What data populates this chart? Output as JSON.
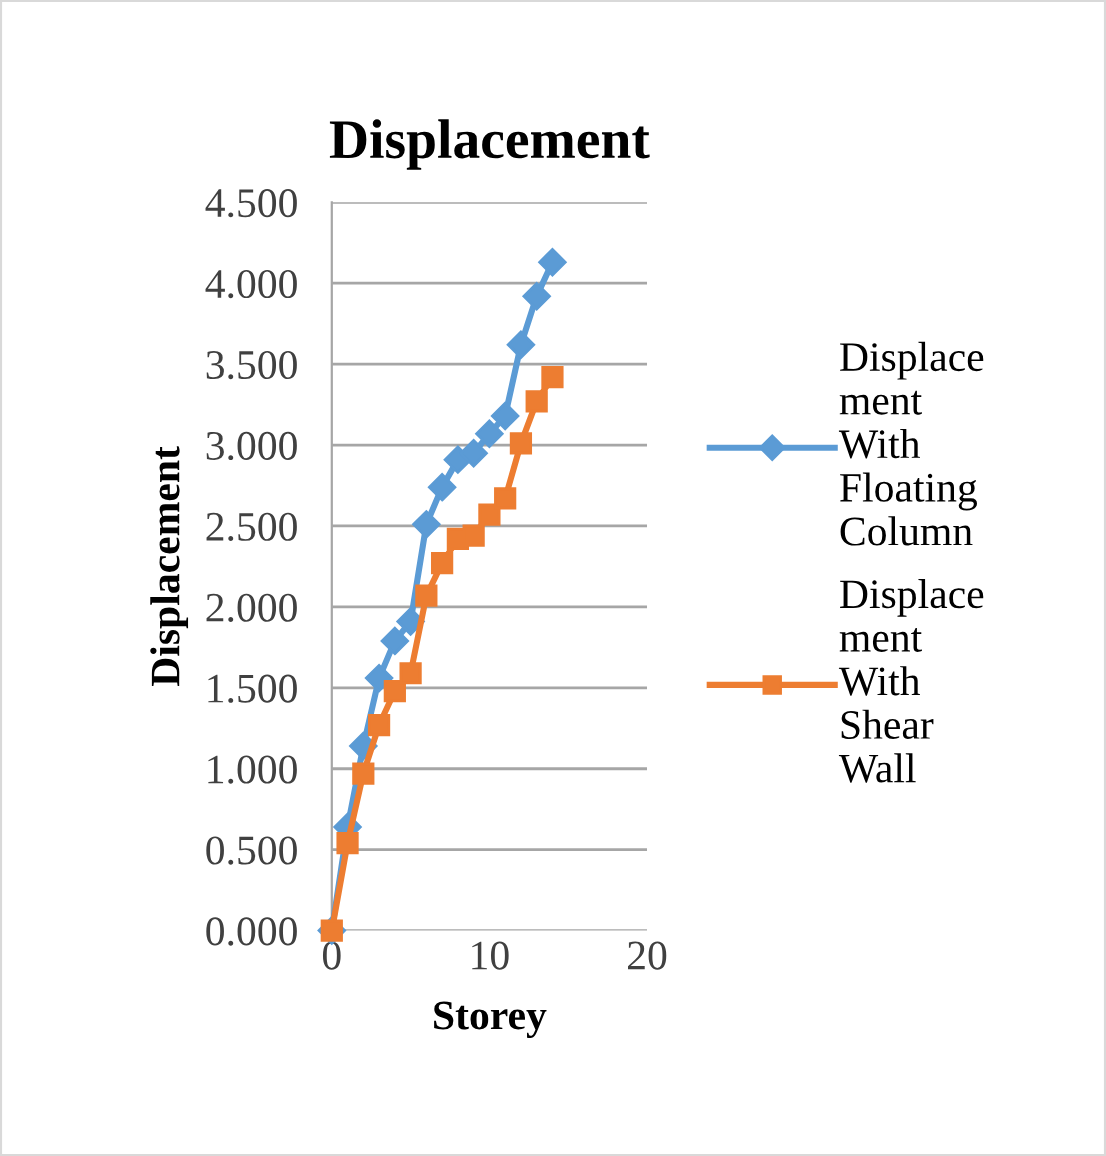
{
  "chart_data": {
    "type": "line",
    "title": "Displacement",
    "xlabel": "Storey",
    "ylabel": "Displacement",
    "x": [
      0,
      1,
      2,
      3,
      4,
      5,
      6,
      7,
      8,
      9,
      10,
      11,
      12,
      13,
      14
    ],
    "series": [
      {
        "name": "Displacement With Floating Column",
        "color": "#5b9bd5",
        "marker": "diamond",
        "values": [
          0,
          0.64,
          1.14,
          1.56,
          1.79,
          1.91,
          2.51,
          2.74,
          2.91,
          2.95,
          3.07,
          3.18,
          3.62,
          3.92,
          4.13
        ]
      },
      {
        "name": "Displacement With Shear Wall",
        "color": "#ed7d31",
        "marker": "square",
        "values": [
          0,
          0.54,
          0.97,
          1.27,
          1.48,
          1.59,
          2.07,
          2.27,
          2.42,
          2.44,
          2.57,
          2.67,
          3.01,
          3.27,
          3.42
        ]
      }
    ],
    "xlim": [
      0,
      20
    ],
    "xticks": [
      0,
      10,
      20
    ],
    "ylim": [
      0,
      4.5
    ],
    "yticks": [
      {
        "value": 0,
        "label": "0.000"
      },
      {
        "value": 0.5,
        "label": "0.500"
      },
      {
        "value": 1,
        "label": "1.000"
      },
      {
        "value": 1.5,
        "label": "1.500"
      },
      {
        "value": 2,
        "label": "2.000"
      },
      {
        "value": 2.5,
        "label": "2.500"
      },
      {
        "value": 3,
        "label": "3.000"
      },
      {
        "value": 3.5,
        "label": "3.500"
      },
      {
        "value": 4,
        "label": "4.000"
      },
      {
        "value": 4.5,
        "label": "4.500"
      }
    ],
    "grid": "y",
    "legend": "right"
  }
}
